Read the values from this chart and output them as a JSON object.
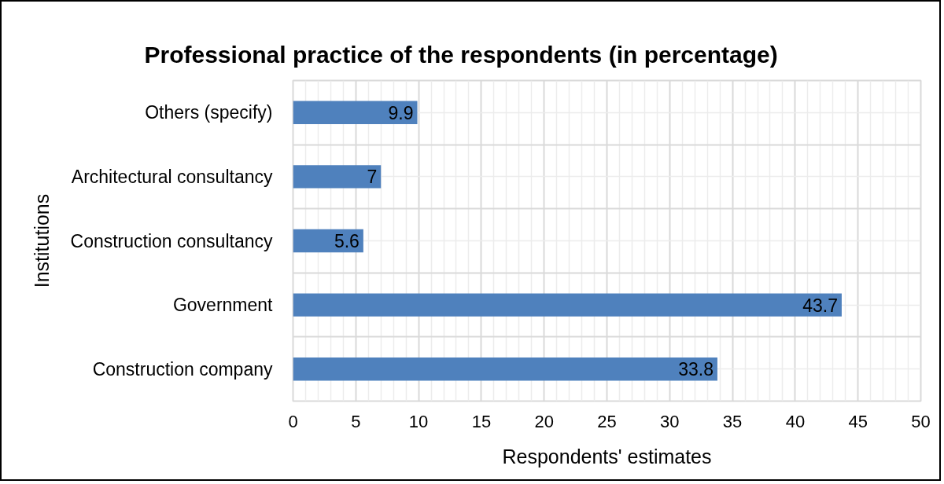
{
  "chart_data": {
    "type": "bar",
    "orientation": "horizontal",
    "title": "Professional practice of the respondents (in percentage)",
    "xlabel": "Respondents' estimates",
    "ylabel": "Institutions",
    "categories": [
      "Others (specify)",
      "Architectural consultancy",
      "Construction consultancy",
      "Government",
      "Construction company"
    ],
    "values": [
      9.9,
      7,
      5.6,
      43.7,
      33.8
    ],
    "color": "#4f81bd",
    "xlim": [
      0,
      50
    ],
    "xticks": [
      0,
      5,
      10,
      15,
      20,
      25,
      30,
      35,
      40,
      45,
      50
    ],
    "grid": true,
    "data_labels": true
  }
}
